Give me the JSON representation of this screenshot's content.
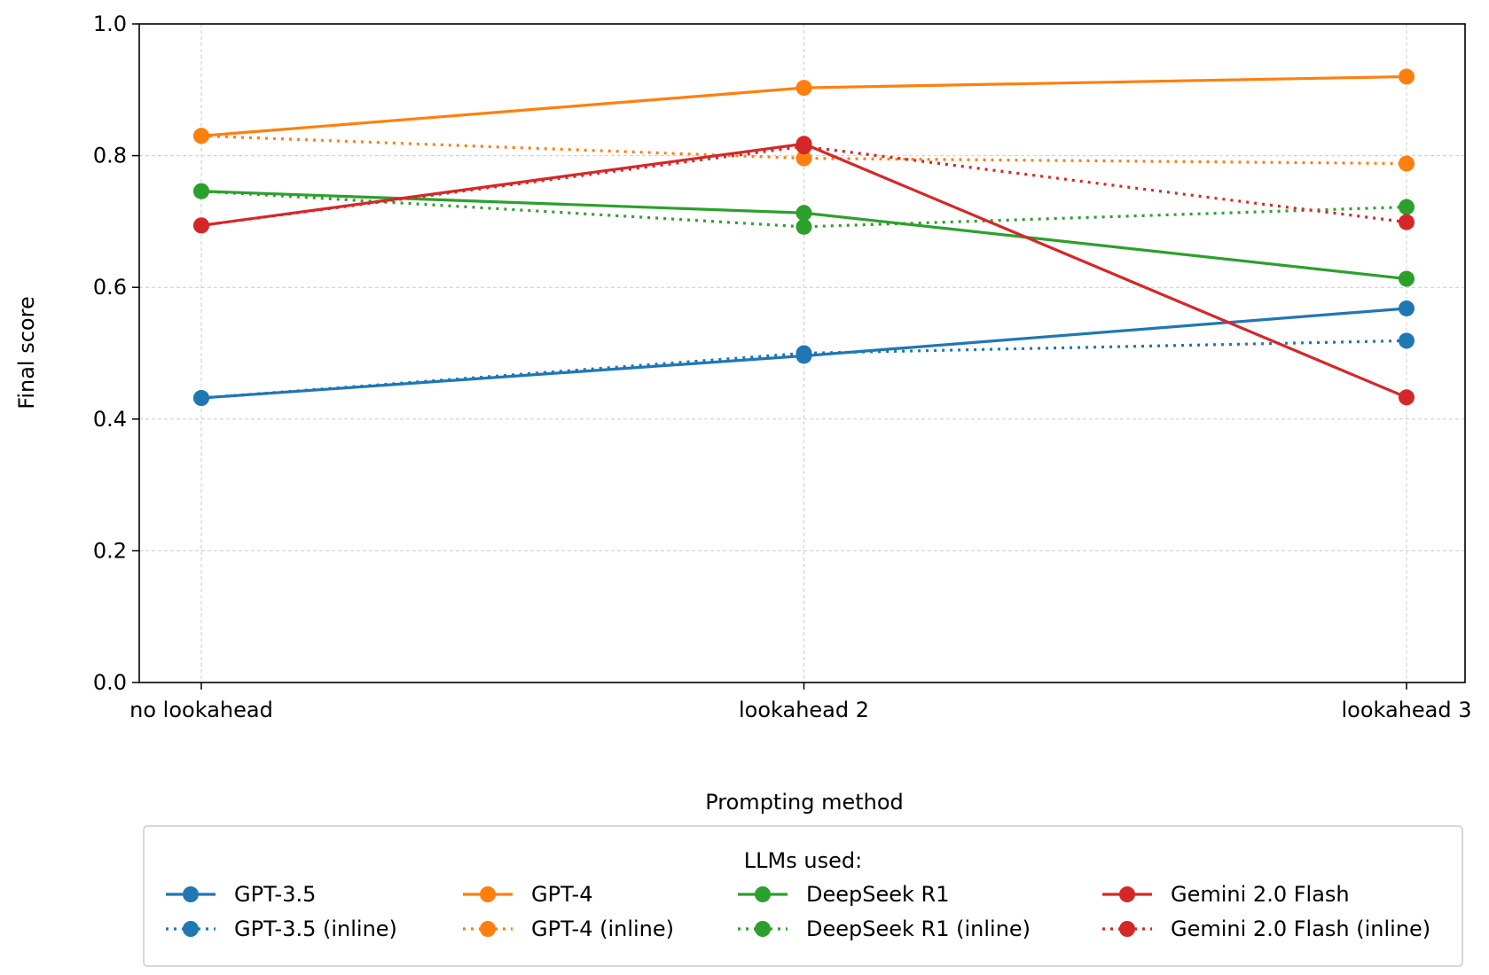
{
  "chart_data": {
    "type": "line",
    "title": "",
    "xlabel": "Prompting method",
    "ylabel": "Final score",
    "categories": [
      "no lookahead",
      "lookahead 2",
      "lookahead 3"
    ],
    "ylim": [
      0.0,
      1.0
    ],
    "yticks": [
      0.0,
      0.2,
      0.4,
      0.6,
      0.8,
      1.0
    ],
    "ytick_labels": [
      "0.0",
      "0.2",
      "0.4",
      "0.6",
      "0.8",
      "1.0"
    ],
    "grid": true,
    "legend": {
      "title": "LLMs used:",
      "placement": "below plot, 4 columns"
    },
    "series": [
      {
        "name": "GPT-3.5",
        "color": "#1f77b4",
        "style": "solid",
        "values": [
          0.432,
          0.496,
          0.568
        ]
      },
      {
        "name": "GPT-3.5 (inline)",
        "color": "#1f77b4",
        "style": "dotted",
        "values": [
          0.432,
          0.5,
          0.519
        ]
      },
      {
        "name": "GPT-4",
        "color": "#ff7f0e",
        "style": "solid",
        "values": [
          0.83,
          0.903,
          0.92
        ]
      },
      {
        "name": "GPT-4 (inline)",
        "color": "#ff7f0e",
        "style": "dotted",
        "values": [
          0.83,
          0.796,
          0.788
        ]
      },
      {
        "name": "DeepSeek R1",
        "color": "#2ca02c",
        "style": "solid",
        "values": [
          0.746,
          0.713,
          0.613
        ]
      },
      {
        "name": "DeepSeek R1 (inline)",
        "color": "#2ca02c",
        "style": "dotted",
        "values": [
          0.746,
          0.692,
          0.722
        ]
      },
      {
        "name": "Gemini 2.0 Flash",
        "color": "#d62728",
        "style": "solid",
        "values": [
          0.694,
          0.818,
          0.433
        ]
      },
      {
        "name": "Gemini 2.0 Flash (inline)",
        "color": "#d62728",
        "style": "dotted",
        "values": [
          0.694,
          0.814,
          0.699
        ]
      }
    ]
  }
}
